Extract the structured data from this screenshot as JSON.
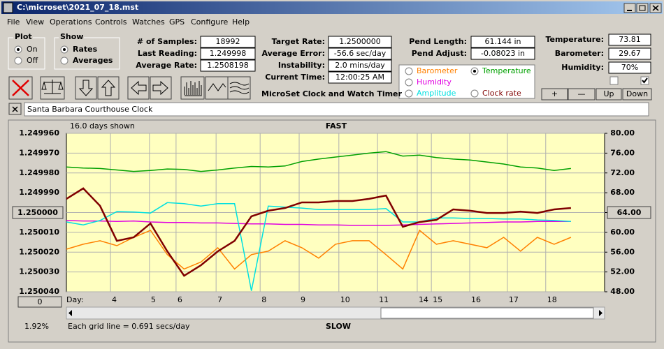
{
  "window": {
    "title": "C:\\microset\\2021_07_18.mst"
  },
  "menu": [
    "File",
    "View",
    "Operations",
    "Controls",
    "Watches",
    "GPS",
    "Configure",
    "Help"
  ],
  "plot_box": {
    "title": "Plot",
    "options": [
      {
        "label": "On",
        "checked": true
      },
      {
        "label": "Off",
        "checked": false
      }
    ]
  },
  "show_box": {
    "title": "Show",
    "options": [
      {
        "label": "Rates",
        "checked": true
      },
      {
        "label": "Averages",
        "checked": false
      }
    ]
  },
  "fields": [
    {
      "label": "# of Samples:",
      "value": "18992"
    },
    {
      "label": "Last Reading:",
      "value": "1.249998"
    },
    {
      "label": "Average Rate:",
      "value": "1.2508198"
    },
    {
      "label": "Target Rate:",
      "value": "1.2500000"
    },
    {
      "label": "Average Error:",
      "value": "-56.6 sec/day"
    },
    {
      "label": "Instability:",
      "value": "2.0 mins/day"
    },
    {
      "label": "Current Time:",
      "value": "12:00:25 AM"
    },
    {
      "label": "Pend Length:",
      "value": "61.144 in"
    },
    {
      "label": "Pend Adjust:",
      "value": "-0.08023 in"
    },
    {
      "label": "Temperature:",
      "value": "73.81"
    },
    {
      "label": "Barometer:",
      "value": "29.67"
    },
    {
      "label": "Humidity:",
      "value": "70%"
    }
  ],
  "app_name": "MicroSet Clock and Watch Timer",
  "checkboxes": [
    false,
    true
  ],
  "buttons": [
    "+",
    "—",
    "Up",
    "Down"
  ],
  "clock_name": "Santa Barbara Courthouse Clock",
  "chart_data": {
    "type": "line",
    "top_label": "FAST",
    "bottom_label": "SLOW",
    "span_label": "16.0 days shown",
    "grid_note": "Each grid line = 0.691 secs/day",
    "percent_label": "1.92%",
    "x_label": "Day:",
    "left_button": "1.250000",
    "right_button": "64.00",
    "zero_button": "0",
    "xlim": [
      0,
      16
    ],
    "xticks": [
      {
        "value": 1.31,
        "label": "4"
      },
      {
        "value": 2.47,
        "label": "5"
      },
      {
        "value": 3.26,
        "label": "6"
      },
      {
        "value": 4.45,
        "label": "7"
      },
      {
        "value": 5.76,
        "label": "8"
      },
      {
        "value": 6.92,
        "label": "9"
      },
      {
        "value": 8.1,
        "label": "10"
      },
      {
        "value": 9.25,
        "label": "11"
      },
      {
        "value": 10.43,
        "label": "14"
      },
      {
        "value": 10.85,
        "label": "15"
      },
      {
        "value": 11.99,
        "label": "16"
      },
      {
        "value": 13.11,
        "label": "17"
      },
      {
        "value": 14.25,
        "label": "18"
      }
    ],
    "ylim": [
      1.25004,
      1.24996
    ],
    "yticks": [
      {
        "value": 1.24996,
        "label": "1.249960"
      },
      {
        "value": 1.24997,
        "label": "1.249970"
      },
      {
        "value": 1.24998,
        "label": "1.249980"
      },
      {
        "value": 1.24999,
        "label": "1.249990"
      },
      {
        "value": 1.25,
        "label": "1.250000"
      },
      {
        "value": 1.25001,
        "label": "1.250010"
      },
      {
        "value": 1.25002,
        "label": "1.250020"
      },
      {
        "value": 1.25003,
        "label": "1.250030"
      },
      {
        "value": 1.25004,
        "label": "1.250040"
      }
    ],
    "y2lim": [
      48,
      80
    ],
    "y2ticks": [
      {
        "value": 80,
        "label": "80.00"
      },
      {
        "value": 76,
        "label": "76.00"
      },
      {
        "value": 72,
        "label": "72.00"
      },
      {
        "value": 68,
        "label": "68.00"
      },
      {
        "value": 64,
        "label": "64.00"
      },
      {
        "value": 60,
        "label": "60.00"
      },
      {
        "value": 56,
        "label": "56.00"
      },
      {
        "value": 52,
        "label": "52.00"
      },
      {
        "value": 48,
        "label": "48.00"
      }
    ],
    "grid": true,
    "x": [
      0,
      0.5,
      1,
      1.5,
      2,
      2.5,
      3,
      3.5,
      4,
      4.5,
      5,
      5.5,
      6,
      6.5,
      7,
      7.5,
      8,
      8.5,
      9,
      9.5,
      10,
      10.5,
      11,
      11.5,
      12,
      12.5,
      13,
      13.5,
      14,
      14.5,
      15,
      15.5,
      16
    ],
    "series": [
      {
        "name": "Barometer",
        "color": "#ff8000",
        "axis": "y2",
        "checked": false,
        "values": [
          56.6,
          57.6,
          58.3,
          57.3,
          59,
          60.4,
          55.5,
          52.6,
          54,
          56.9,
          52.6,
          55.5,
          56.2,
          58.3,
          56.9,
          54.8,
          57.6,
          58.3,
          58.3,
          55.5,
          52.6,
          60.4,
          57.6,
          58.3,
          57.6,
          56.9,
          59,
          56.2,
          59,
          57.6,
          59,
          null,
          null
        ]
      },
      {
        "name": "Temperature",
        "color": "#00a000",
        "axis": "y2",
        "checked": true,
        "values": [
          73.2,
          73,
          72.9,
          72.6,
          72.3,
          72.5,
          72.8,
          72.7,
          72.3,
          72.6,
          73,
          73.3,
          73.2,
          73.4,
          74.3,
          74.8,
          75.2,
          75.6,
          76,
          76.3,
          75.4,
          75.6,
          75.1,
          74.8,
          74.6,
          74.2,
          73.8,
          73.2,
          73,
          72.5,
          72.9,
          null,
          null
        ]
      },
      {
        "name": "Humidity",
        "color": "#e000e0",
        "axis": "y2",
        "checked": false,
        "values": [
          62.4,
          62.3,
          62.3,
          62.2,
          62.3,
          62.1,
          62,
          62,
          61.9,
          61.9,
          61.8,
          61.7,
          61.7,
          61.6,
          61.6,
          61.5,
          61.5,
          61.4,
          61.4,
          61.4,
          61.5,
          61.6,
          61.7,
          61.8,
          61.9,
          62,
          62.1,
          62.1,
          62.2,
          62.2,
          62.2,
          null,
          null
        ]
      },
      {
        "name": "Amplitude",
        "color": "#00e0e0",
        "axis": "y2",
        "checked": false,
        "values": [
          62.1,
          61.5,
          62.4,
          64.2,
          64.1,
          63.9,
          66,
          65.8,
          65.3,
          65.8,
          65.8,
          48.2,
          65.3,
          65.1,
          64.9,
          64.6,
          64.6,
          64.6,
          64.6,
          64.8,
          62.1,
          62.1,
          62.9,
          62.9,
          62.8,
          62.8,
          62.7,
          62.7,
          62.5,
          62.4,
          62.2,
          null,
          null
        ]
      },
      {
        "name": "Clock rate",
        "color": "#800000",
        "axis": "y",
        "checked": false,
        "values": [
          1.2499931,
          1.2499878,
          1.2499966,
          1.2500143,
          1.2500125,
          1.2500055,
          1.2500196,
          1.2500319,
          1.2500266,
          1.2500196,
          1.2500143,
          1.2500019,
          1.2499991,
          1.2499977,
          1.2499949,
          1.2499949,
          1.2499942,
          1.2499942,
          1.2499931,
          1.2499914,
          1.2500072,
          1.2500048,
          1.2500037,
          1.2499984,
          1.2499991,
          1.2500002,
          1.2500002,
          1.2499995,
          1.2500002,
          1.2499984,
          1.2499977,
          null,
          null
        ]
      }
    ]
  }
}
